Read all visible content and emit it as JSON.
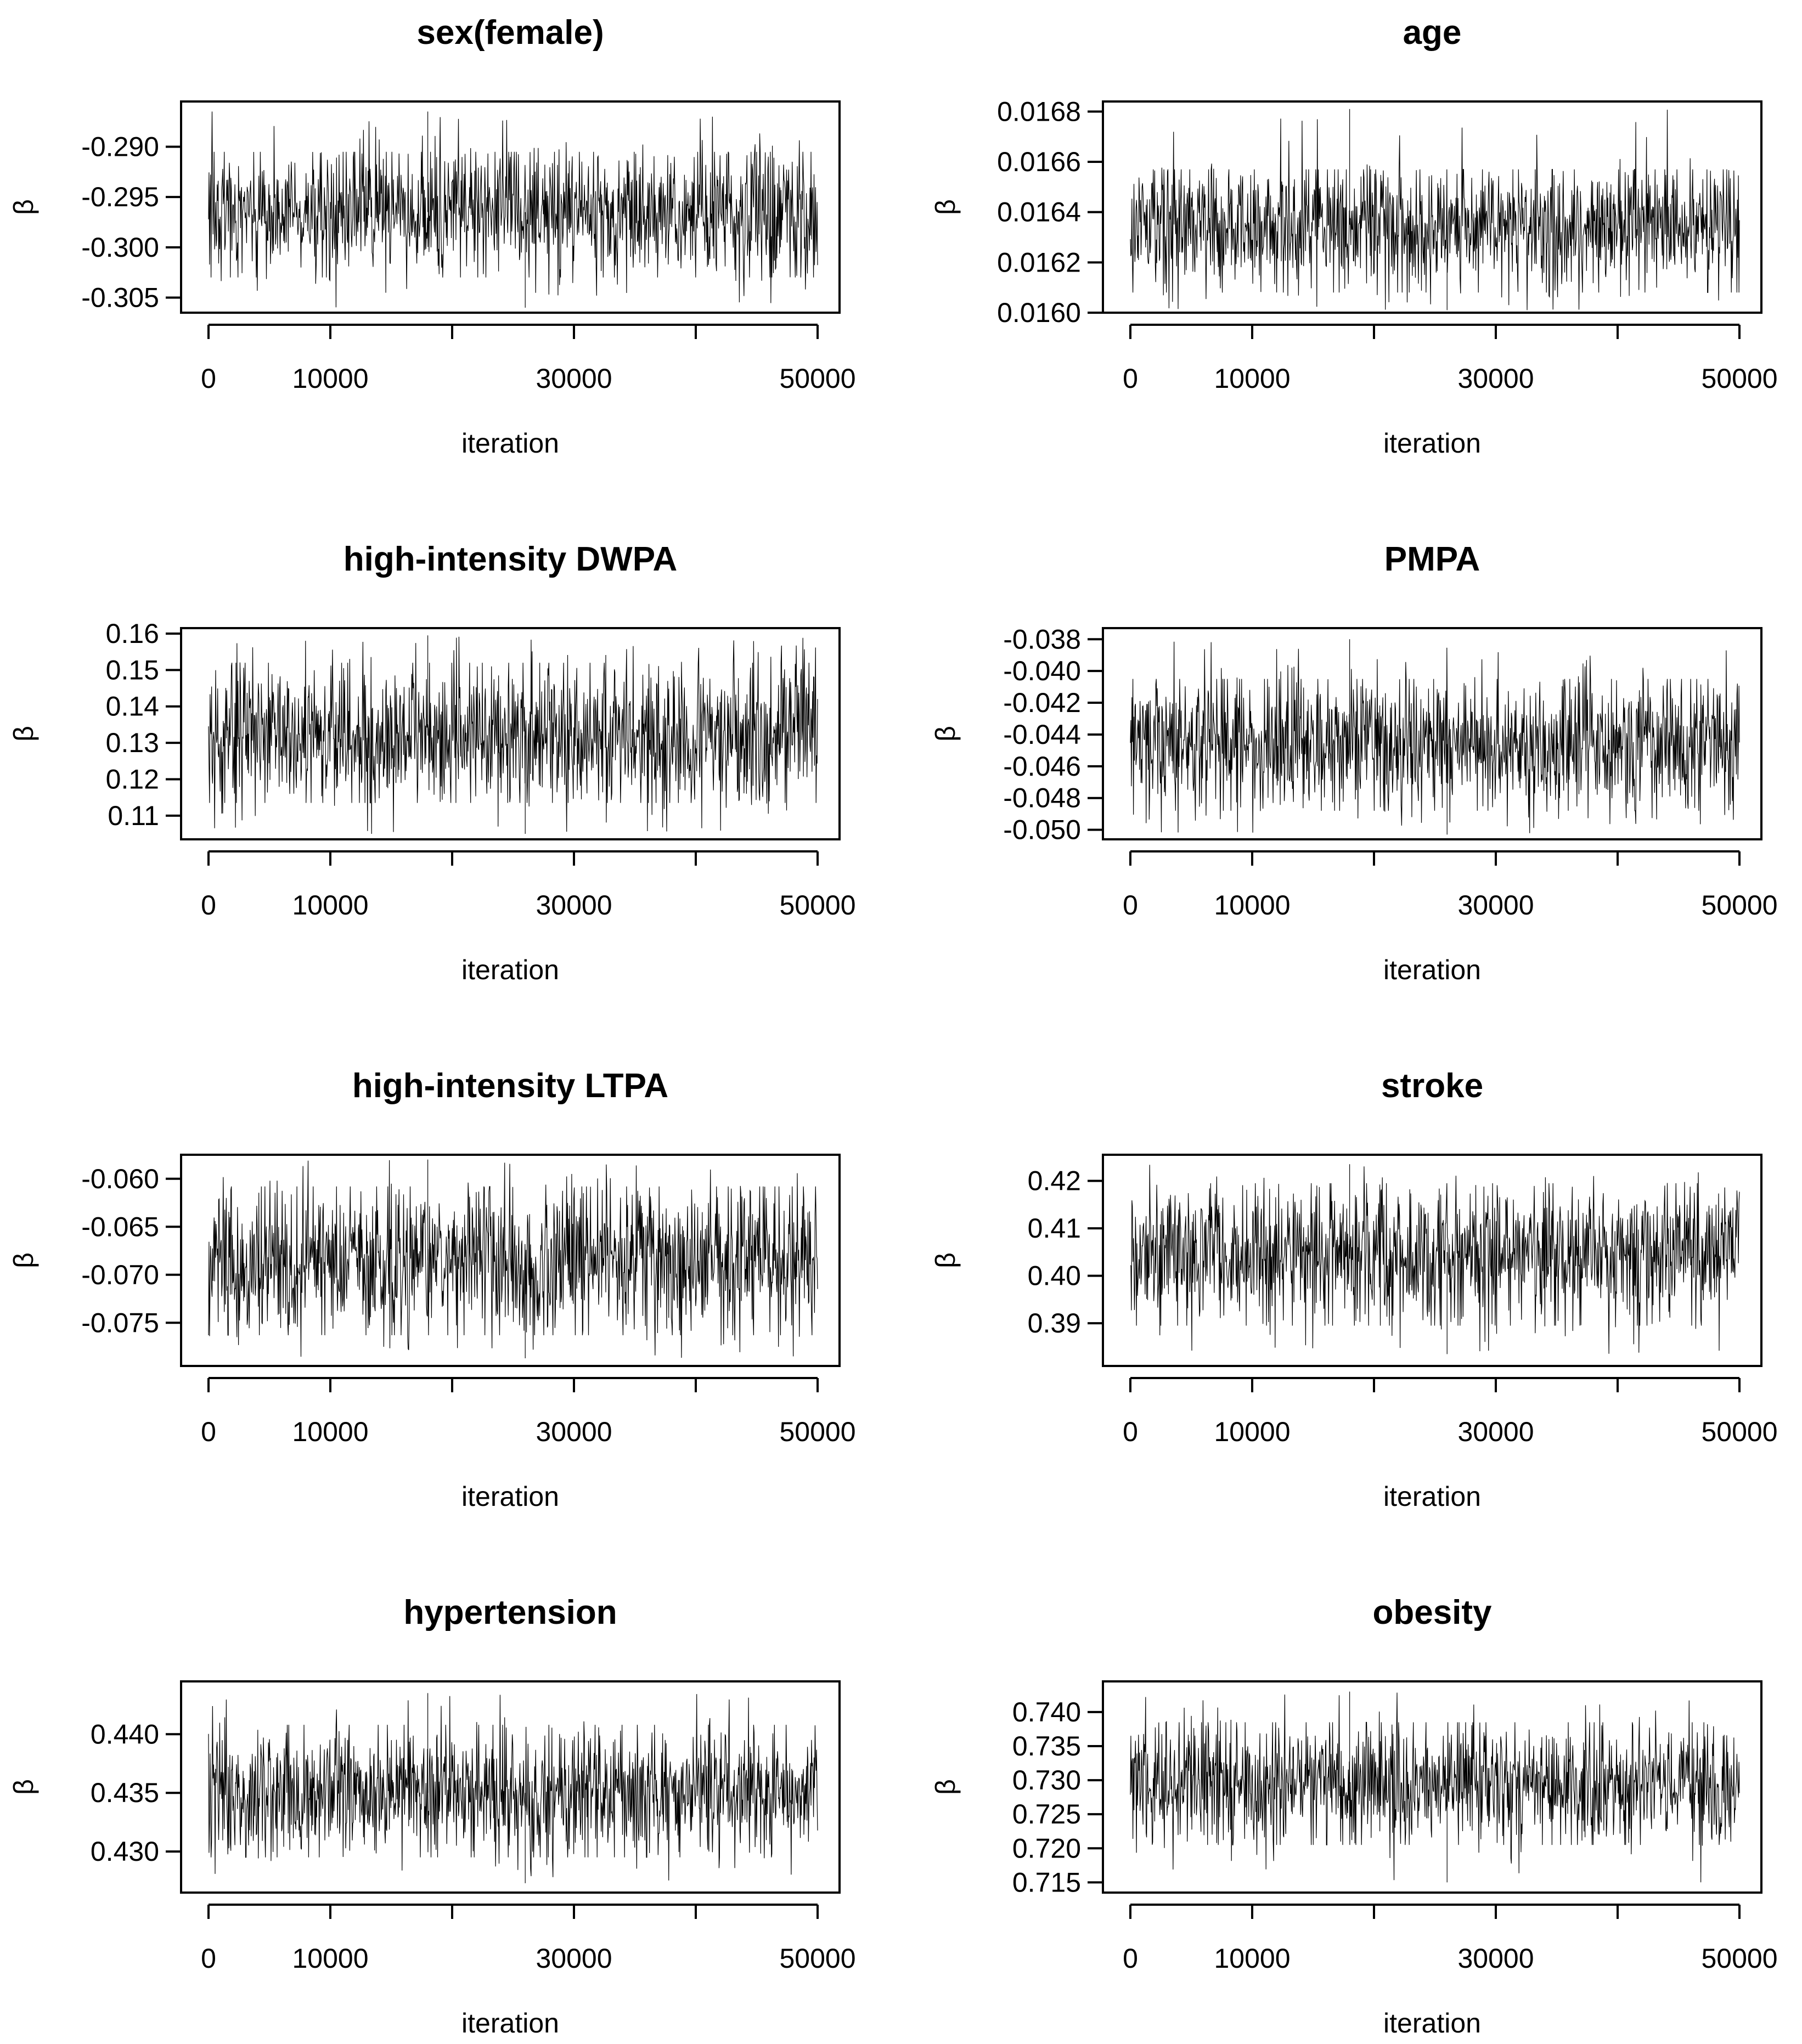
{
  "chart_data": [
    {
      "type": "line",
      "title": "sex(female)",
      "xlabel": "iteration",
      "ylabel": "β",
      "x_ticks": [
        0,
        10000,
        30000,
        50000
      ],
      "x_tick_labels": [
        "0",
        "10000",
        "30000",
        "50000"
      ],
      "xlim": [
        0,
        50000
      ],
      "y_ticks": [
        -0.29,
        -0.295,
        -0.3,
        -0.305
      ],
      "y_tick_labels": [
        "-0.290",
        "-0.295",
        "-0.300",
        "-0.305"
      ],
      "ylim": [
        -0.3065,
        -0.2855
      ],
      "trace": {
        "iterations": 50000,
        "mean": -0.2965,
        "typical_min": -0.303,
        "typical_max": -0.2905,
        "min": -0.306,
        "max": -0.2865
      }
    },
    {
      "type": "line",
      "title": "age",
      "xlabel": "iteration",
      "ylabel": "β",
      "x_ticks": [
        0,
        10000,
        30000,
        50000
      ],
      "x_tick_labels": [
        "0",
        "10000",
        "30000",
        "50000"
      ],
      "xlim": [
        0,
        50000
      ],
      "y_ticks": [
        0.0168,
        0.0166,
        0.0164,
        0.0162,
        0.016
      ],
      "y_tick_labels": [
        "0.0168",
        "0.0166",
        "0.0164",
        "0.0162",
        "0.0160"
      ],
      "ylim": [
        0.016,
        0.01684
      ],
      "trace": {
        "iterations": 50000,
        "mean": 0.01635,
        "typical_min": 0.01608,
        "typical_max": 0.01657,
        "min": 0.01601,
        "max": 0.01681
      }
    },
    {
      "type": "line",
      "title": "high-intensity DWPA",
      "xlabel": "iteration",
      "ylabel": "β",
      "x_ticks": [
        0,
        10000,
        30000,
        50000
      ],
      "x_tick_labels": [
        "0",
        "10000",
        "30000",
        "50000"
      ],
      "xlim": [
        0,
        50000
      ],
      "y_ticks": [
        0.16,
        0.15,
        0.14,
        0.13,
        0.12,
        0.11
      ],
      "y_tick_labels": [
        "0.16",
        "0.15",
        "0.14",
        "0.13",
        "0.12",
        "0.11"
      ],
      "ylim": [
        0.1035,
        0.1615
      ],
      "trace": {
        "iterations": 50000,
        "mean": 0.132,
        "typical_min": 0.1135,
        "typical_max": 0.152,
        "min": 0.105,
        "max": 0.1595
      }
    },
    {
      "type": "line",
      "title": "PMPA",
      "xlabel": "iteration",
      "ylabel": "β",
      "x_ticks": [
        0,
        10000,
        30000,
        50000
      ],
      "x_tick_labels": [
        "0",
        "10000",
        "30000",
        "50000"
      ],
      "xlim": [
        0,
        50000
      ],
      "y_ticks": [
        -0.038,
        -0.04,
        -0.042,
        -0.044,
        -0.046,
        -0.048,
        -0.05
      ],
      "y_tick_labels": [
        "-0.038",
        "-0.040",
        "-0.042",
        "-0.044",
        "-0.046",
        "-0.048",
        "-0.050"
      ],
      "ylim": [
        -0.0506,
        -0.0373
      ],
      "trace": {
        "iterations": 50000,
        "mean": -0.0446,
        "typical_min": -0.0488,
        "typical_max": -0.0405,
        "min": -0.0503,
        "max": -0.038
      }
    },
    {
      "type": "line",
      "title": "high-intensity LTPA",
      "xlabel": "iteration",
      "ylabel": "β",
      "x_ticks": [
        0,
        10000,
        30000,
        50000
      ],
      "x_tick_labels": [
        "0",
        "10000",
        "30000",
        "50000"
      ],
      "xlim": [
        0,
        50000
      ],
      "y_ticks": [
        -0.06,
        -0.065,
        -0.07,
        -0.075
      ],
      "y_tick_labels": [
        "-0.060",
        "-0.065",
        "-0.070",
        "-0.075"
      ],
      "ylim": [
        -0.0795,
        -0.0575
      ],
      "trace": {
        "iterations": 50000,
        "mean": -0.0685,
        "typical_min": -0.0763,
        "typical_max": -0.0608,
        "min": -0.0787,
        "max": -0.058
      }
    },
    {
      "type": "line",
      "title": "stroke",
      "xlabel": "iteration",
      "ylabel": "β",
      "x_ticks": [
        0,
        10000,
        30000,
        50000
      ],
      "x_tick_labels": [
        "0",
        "10000",
        "30000",
        "50000"
      ],
      "xlim": [
        0,
        50000
      ],
      "y_ticks": [
        0.42,
        0.41,
        0.4,
        0.39
      ],
      "y_tick_labels": [
        "0.42",
        "0.41",
        "0.40",
        "0.39"
      ],
      "ylim": [
        0.381,
        0.4255
      ],
      "trace": {
        "iterations": 50000,
        "mean": 0.405,
        "typical_min": 0.3895,
        "typical_max": 0.4195,
        "min": 0.3835,
        "max": 0.4235
      }
    },
    {
      "type": "line",
      "title": "hypertension",
      "xlabel": "iteration",
      "ylabel": "β",
      "x_ticks": [
        0,
        10000,
        30000,
        50000
      ],
      "x_tick_labels": [
        "0",
        "10000",
        "30000",
        "50000"
      ],
      "xlim": [
        0,
        50000
      ],
      "y_ticks": [
        0.44,
        0.435,
        0.43
      ],
      "y_tick_labels": [
        "0.440",
        "0.435",
        "0.430"
      ],
      "ylim": [
        0.4265,
        0.4445
      ],
      "trace": {
        "iterations": 50000,
        "mean": 0.435,
        "typical_min": 0.4295,
        "typical_max": 0.4408,
        "min": 0.4273,
        "max": 0.4435
      }
    },
    {
      "type": "line",
      "title": "obesity",
      "xlabel": "iteration",
      "ylabel": "β",
      "x_ticks": [
        0,
        10000,
        30000,
        50000
      ],
      "x_tick_labels": [
        "0",
        "10000",
        "30000",
        "50000"
      ],
      "xlim": [
        0,
        50000
      ],
      "y_ticks": [
        0.74,
        0.735,
        0.73,
        0.725,
        0.72,
        0.715
      ],
      "y_tick_labels": [
        "0.740",
        "0.735",
        "0.730",
        "0.725",
        "0.720",
        "0.715"
      ],
      "ylim": [
        0.7135,
        0.7445
      ],
      "trace": {
        "iterations": 50000,
        "mean": 0.7295,
        "typical_min": 0.7205,
        "typical_max": 0.7385,
        "min": 0.715,
        "max": 0.743
      }
    }
  ]
}
